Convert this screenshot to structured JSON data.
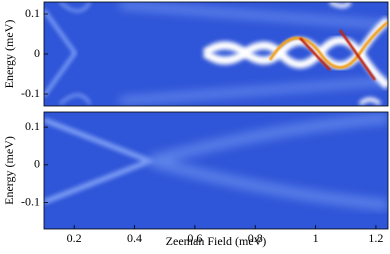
{
  "chart_data": [
    {
      "type": "heatmap",
      "ylabel": "Energy (meV)",
      "xlim": [
        0.1,
        1.24
      ],
      "ylim": [
        -0.13,
        0.13
      ],
      "yticks": [
        0.1,
        0,
        -0.1
      ]
    },
    {
      "type": "heatmap",
      "ylabel": "Energy (meV)",
      "xlabel": "Zeeman Field (meV)",
      "xlim": [
        0.1,
        1.24
      ],
      "ylim": [
        -0.17,
        0.14
      ],
      "yticks": [
        0.1,
        0,
        -0.1
      ],
      "xticks": [
        0.2,
        0.4,
        0.6,
        0.8,
        1,
        1.2
      ]
    }
  ]
}
